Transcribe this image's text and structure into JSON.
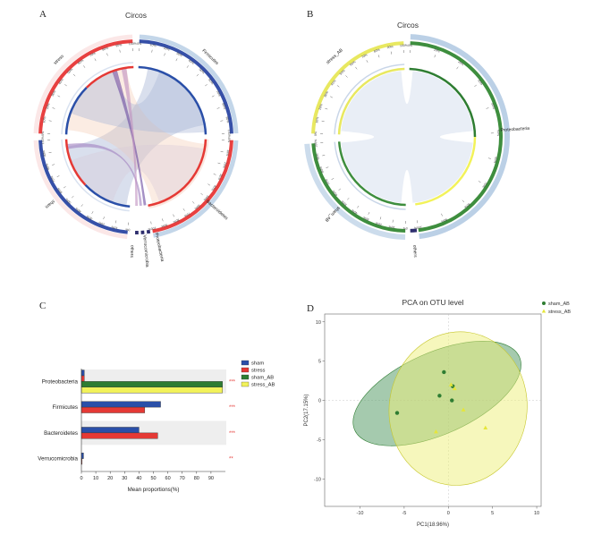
{
  "panels": {
    "a": {
      "label": "A",
      "chart_title": "Circos",
      "segments": [
        {
          "name": "Firmicutes",
          "color": "#3650a8",
          "value": 100
        },
        {
          "name": "Bacteroidetes",
          "color": "#e84040",
          "value": 95
        },
        {
          "name": "Proteobacteria",
          "color": "#2e2e6e",
          "value": 4
        },
        {
          "name": "Verrucomicrobia",
          "color": "#2e2e6e",
          "value": 2
        },
        {
          "name": "others",
          "color": "#2e2e6e",
          "value": 2
        },
        {
          "name": "sham",
          "color": "#3650a8",
          "value": 100
        },
        {
          "name": "stress",
          "color": "#e84040",
          "value": 100
        }
      ],
      "tick_percent_labels": [
        "0%",
        "10%",
        "20%",
        "30%",
        "40%",
        "50%",
        "60%",
        "70%",
        "80%",
        "90%",
        "100%"
      ]
    },
    "b": {
      "label": "B",
      "chart_title": "Circos",
      "segments": [
        {
          "name": "Proteobacteria",
          "color": "#3e8e3e",
          "value": 200
        },
        {
          "name": "others",
          "color": "#2e2e6e",
          "value": 5
        },
        {
          "name": "sham_AB",
          "color": "#3e8e3e",
          "value": 100
        },
        {
          "name": "stress_AB",
          "color": "#e8e860",
          "value": 100
        }
      ],
      "tick_percent_labels": [
        "0%",
        "10%",
        "20%",
        "30%",
        "40%",
        "50%",
        "60%",
        "70%",
        "80%",
        "90%",
        "100%"
      ]
    },
    "c": {
      "label": "C"
    },
    "d": {
      "label": "D"
    }
  },
  "colors": {
    "sham": "#2a4fa8",
    "stress": "#e53935",
    "sham_AB": "#2e7d32",
    "stress_AB": "#f2f25a",
    "grey": "#aab7cc"
  },
  "chart_data": [
    {
      "type": "bar",
      "orientation": "horizontal",
      "panel": "C",
      "categories": [
        "Proteobacteria",
        "Firmicutes",
        "Bacteroidetes",
        "Verrucomicrobia"
      ],
      "series": [
        {
          "name": "sham",
          "values": [
            2,
            55,
            40,
            1.5
          ]
        },
        {
          "name": "stress",
          "values": [
            2,
            44,
            53,
            0.5
          ]
        },
        {
          "name": "sham_AB",
          "values": [
            98,
            0,
            0,
            0
          ]
        },
        {
          "name": "stress_AB",
          "values": [
            98,
            0,
            0,
            0
          ]
        }
      ],
      "significance": [
        "***",
        "***",
        "***",
        "**"
      ],
      "xlabel": "Mean proportions(%)",
      "xlim": [
        0,
        100
      ],
      "xticks": [
        0,
        10,
        20,
        30,
        40,
        50,
        60,
        70,
        80,
        90
      ],
      "legend_position": "top-right"
    },
    {
      "type": "scatter",
      "panel": "D",
      "title": "PCA on OTU level",
      "xlabel": "PC1(18.96%)",
      "ylabel": "PC2(17.15%)",
      "xlim": [
        -14,
        10.5
      ],
      "ylim": [
        -13.5,
        11
      ],
      "xticks": [
        -10,
        -5,
        0,
        5,
        10
      ],
      "yticks": [
        -10,
        -5,
        0,
        5,
        10
      ],
      "series": [
        {
          "name": "sham_AB",
          "points": [
            [
              -5.8,
              -1.6
            ],
            [
              -0.5,
              3.6
            ],
            [
              -1.0,
              0.6
            ],
            [
              0.5,
              1.8
            ],
            [
              0.4,
              0.0
            ]
          ]
        },
        {
          "name": "stress_AB",
          "points": [
            [
              1.7,
              -1.2
            ],
            [
              4.2,
              -3.5
            ],
            [
              -1.4,
              -4.0
            ],
            [
              0.3,
              2.0
            ],
            [
              0.7,
              1.5
            ]
          ]
        }
      ],
      "legend_position": "top-right"
    }
  ]
}
